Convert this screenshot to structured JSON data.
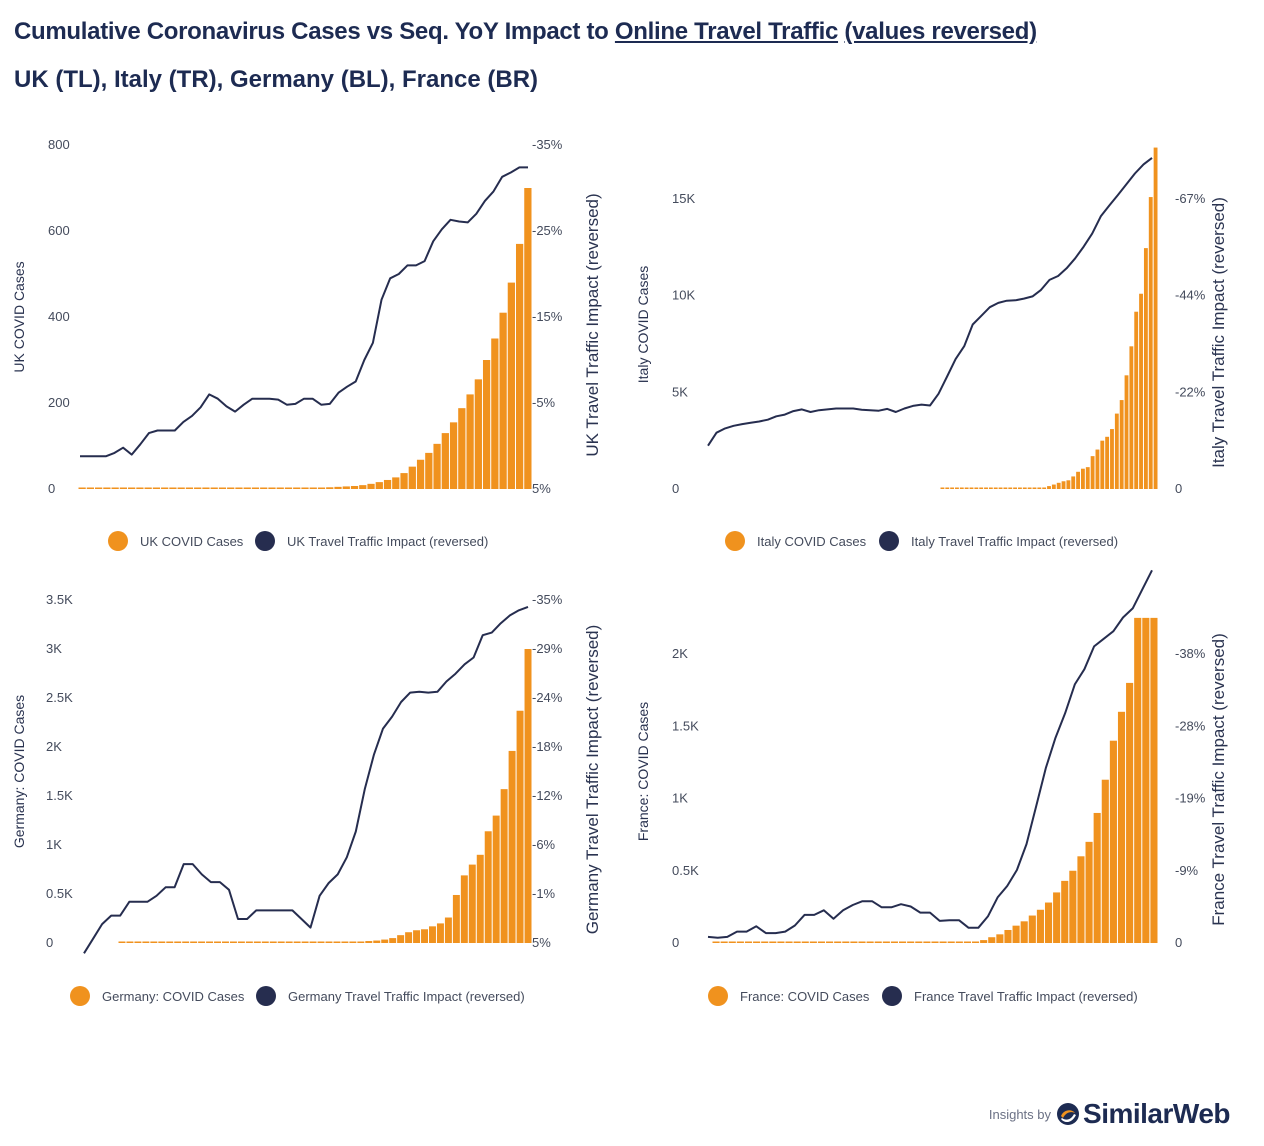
{
  "header": {
    "title_part1": "Cumulative Coronavirus Cases vs Seq. YoY Impact to ",
    "title_link1": "Online Travel Traffic",
    "title_link2": "(values reversed)",
    "subtitle": "UK (TL), Italy (TR), Germany (BL), France (BR)"
  },
  "footer": {
    "insights_by": "Insights by",
    "brand": "SimilarWeb"
  },
  "colors": {
    "bars": "#f0921e",
    "line": "#262d4f",
    "text": "#1d2b52"
  },
  "chart_data": [
    {
      "type": "bar+line",
      "country": "UK",
      "ylabel": "UK COVID Cases",
      "y2label": "UK Travel Traffic Impact (reversed)",
      "yticks": [
        "0",
        "200",
        "400",
        "600",
        "800"
      ],
      "ylim": [
        0,
        800
      ],
      "y2ticks": [
        "5%",
        "-5%",
        "-15%",
        "-25%",
        "-35%"
      ],
      "y2lim": [
        5,
        -35
      ],
      "legend": [
        "UK COVID Cases",
        "UK Travel Traffic Impact (reversed)"
      ],
      "bar_values": [
        1,
        1,
        1,
        1,
        1,
        1,
        1,
        1,
        1,
        1,
        1,
        2,
        2,
        2,
        2,
        2,
        2,
        2,
        2,
        2,
        2,
        2,
        2,
        2,
        2,
        3,
        3,
        3,
        3,
        3,
        4,
        5,
        6,
        7,
        9,
        12,
        16,
        21,
        27,
        37,
        52,
        68,
        84,
        105,
        130,
        155,
        188,
        220,
        255,
        300,
        350,
        410,
        480,
        570,
        700
      ],
      "line_values": [
        1.2,
        1.2,
        1.2,
        1.2,
        0.8,
        0.2,
        1,
        -0.2,
        -1.5,
        -1.8,
        -1.8,
        -1.8,
        -2.8,
        -3.5,
        -4.5,
        -6,
        -5.5,
        -4.6,
        -4,
        -4.8,
        -5.5,
        -5.5,
        -5.5,
        -5.4,
        -4.8,
        -4.9,
        -5.5,
        -5.5,
        -4.8,
        -4.9,
        -6.2,
        -6.9,
        -7.5,
        -10,
        -12,
        -17,
        -19.5,
        -20,
        -21,
        -21,
        -21.5,
        -23.8,
        -25.2,
        -26.3,
        -26.1,
        -26,
        -27,
        -28.5,
        -29.6,
        -31.3,
        -31.8,
        -32.4,
        -32.4
      ]
    },
    {
      "type": "bar+line",
      "country": "Italy",
      "ylabel": "Italy COVID Cases",
      "y2label": "Italy Travel Traffic Impact (reversed)",
      "yticks": [
        "0",
        "5K",
        "10K",
        "15K"
      ],
      "ylim": [
        0,
        18000
      ],
      "y2ticks": [
        "0",
        "-22%",
        "-44%",
        "-67%"
      ],
      "y2lim": [
        0,
        -79
      ],
      "legend": [
        "Italy COVID Cases",
        "Italy Travel Traffic Impact (reversed)"
      ],
      "bar_values": [
        0,
        0,
        0,
        0,
        0,
        0,
        0,
        0,
        0,
        0,
        0,
        0,
        0,
        0,
        0,
        0,
        0,
        0,
        0,
        0,
        20,
        60,
        150,
        230,
        320,
        400,
        450,
        650,
        890,
        1050,
        1130,
        1700,
        2040,
        2500,
        2700,
        3100,
        3900,
        4600,
        5880,
        7380,
        9170,
        10100,
        12460,
        15100,
        17660
      ],
      "line_values": [
        -10,
        -13,
        -14,
        -14.6,
        -15,
        -15.3,
        -15.6,
        -16,
        -16.8,
        -17.2,
        -18,
        -18.4,
        -17.8,
        -18.2,
        -18.4,
        -18.6,
        -18.6,
        -18.6,
        -18.3,
        -18.2,
        -18.1,
        -18.5,
        -17.8,
        -18.6,
        -19.2,
        -19.5,
        -19.3,
        -22,
        -26,
        -30,
        -33,
        -38,
        -40,
        -42,
        -43,
        -43.5,
        -43.6,
        -44,
        -44.5,
        -46,
        -48.3,
        -49.2,
        -51,
        -53.3,
        -56,
        -59,
        -63,
        -65.5,
        -67.9,
        -70.4,
        -72.9,
        -75,
        -76.5
      ]
    },
    {
      "type": "bar+line",
      "country": "Germany",
      "ylabel": "Germany: COVID Cases",
      "y2label": "Germany Travel Traffic Impact (reversed)",
      "yticks": [
        "0",
        "0.5K",
        "1K",
        "1.5K",
        "2K",
        "2.5K",
        "3K",
        "3.5K"
      ],
      "ylim": [
        0,
        3500
      ],
      "y2ticks": [
        "5%",
        "-1%",
        "-6%",
        "-12%",
        "-18%",
        "-24%",
        "-29%",
        "-35%"
      ],
      "y2lim": [
        5,
        -35
      ],
      "legend": [
        "Germany: COVID Cases",
        "Germany Travel Traffic Impact (reversed)"
      ],
      "bar_values": [
        10,
        10,
        10,
        10,
        10,
        10,
        10,
        10,
        10,
        10,
        10,
        10,
        10,
        10,
        10,
        10,
        10,
        10,
        10,
        10,
        10,
        10,
        10,
        10,
        10,
        10,
        10,
        10,
        10,
        10,
        15,
        20,
        25,
        35,
        50,
        80,
        110,
        130,
        140,
        170,
        200,
        260,
        490,
        690,
        800,
        900,
        1140,
        1300,
        1570,
        1960,
        2370,
        3000
      ],
      "line_values": [
        6.2,
        4.5,
        2.8,
        1.8,
        1.8,
        0.2,
        0.2,
        0.2,
        -0.5,
        -1.5,
        -1.5,
        -4.2,
        -4.2,
        -3,
        -2.1,
        -2.1,
        -1.2,
        2.2,
        2.2,
        1.2,
        1.2,
        1.2,
        1.2,
        1.2,
        2.2,
        3.2,
        -0.5,
        -2,
        -3,
        -5,
        -8,
        -13,
        -17,
        -20,
        -21.4,
        -23.1,
        -24.2,
        -24.3,
        -24.2,
        -24.3,
        -25.5,
        -26.4,
        -27.5,
        -28.3,
        -30.9,
        -31.2,
        -32.3,
        -33.2,
        -33.8,
        -34.2
      ]
    },
    {
      "type": "bar+line",
      "country": "France",
      "ylabel": "France: COVID Cases",
      "y2label": "France Travel Traffic Impact (reversed)",
      "yticks": [
        "0",
        "0.5K",
        "1K",
        "1.5K",
        "2K"
      ],
      "ylim": [
        0,
        2250
      ],
      "y2ticks": [
        "0",
        "-9%",
        "-19%",
        "-28%",
        "-38%"
      ],
      "y2lim": [
        0,
        -47
      ],
      "legend": [
        "France: COVID Cases",
        "France Travel Traffic Impact (reversed)"
      ],
      "bar_values": [
        5,
        5,
        5,
        5,
        5,
        5,
        5,
        5,
        5,
        5,
        5,
        5,
        5,
        5,
        5,
        5,
        5,
        5,
        5,
        5,
        5,
        5,
        5,
        5,
        5,
        5,
        5,
        5,
        5,
        5,
        5,
        5,
        10,
        20,
        40,
        60,
        90,
        120,
        150,
        190,
        230,
        280,
        350,
        430,
        500,
        600,
        700,
        900,
        1130,
        1400,
        1600,
        1800,
        2250,
        2250,
        2250
      ],
      "line_values": [
        -0.8,
        -0.7,
        -0.8,
        -1.5,
        -1.5,
        -2.2,
        -1.3,
        -1.3,
        -1.5,
        -2.3,
        -3.7,
        -3.7,
        -4.3,
        -3.2,
        -4.3,
        -5,
        -5.5,
        -5.5,
        -4.7,
        -4.7,
        -5.1,
        -4.8,
        -4,
        -4,
        -2.9,
        -3,
        -3,
        -2,
        -2,
        -3.5,
        -6,
        -7.5,
        -9.6,
        -13,
        -18,
        -23,
        -27,
        -30.2,
        -34,
        -36,
        -39,
        -40,
        -41,
        -42.8,
        -44,
        -46.5,
        -49
      ]
    }
  ]
}
